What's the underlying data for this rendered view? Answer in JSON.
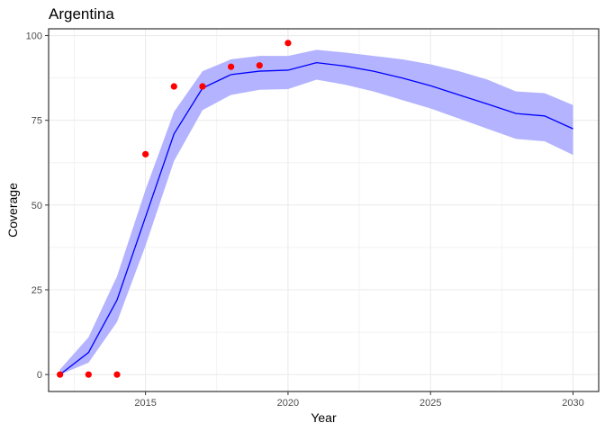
{
  "chart_data": {
    "type": "line",
    "title": "Argentina",
    "xlabel": "Year",
    "ylabel": "Coverage",
    "xlim": [
      2011.6,
      2030.9
    ],
    "ylim": [
      -5,
      102
    ],
    "x_ticks": [
      2015,
      2020,
      2025,
      2030
    ],
    "y_ticks": [
      0,
      25,
      50,
      75,
      100
    ],
    "grid": true,
    "colors": {
      "line": "#0000ff",
      "band": "#b3b3ff",
      "points": "#ff0000",
      "grid": "#ebebeb",
      "panel_border": "#333333"
    },
    "series": [
      {
        "type": "line",
        "x": [
          2012,
          2013,
          2014,
          2015,
          2016,
          2017,
          2018,
          2019,
          2020,
          2021,
          2022,
          2023,
          2024,
          2025,
          2026,
          2027,
          2028,
          2029,
          2030
        ],
        "values": [
          0,
          6.5,
          22,
          46.5,
          71,
          84.5,
          88.5,
          89.5,
          89.8,
          92,
          91,
          89.5,
          87.5,
          85.2,
          82.5,
          79.8,
          77,
          76.3,
          72.5
        ]
      },
      {
        "type": "band",
        "x": [
          2012,
          2013,
          2014,
          2015,
          2016,
          2017,
          2018,
          2019,
          2020,
          2021,
          2022,
          2023,
          2024,
          2025,
          2026,
          2027,
          2028,
          2029,
          2030
        ],
        "lower": [
          0,
          3.5,
          15.5,
          38,
          63,
          78,
          82.5,
          84,
          84.2,
          87,
          85.5,
          83.5,
          81,
          78.5,
          75.5,
          72.5,
          69.5,
          68.8,
          64.8
        ],
        "upper": [
          1.5,
          11,
          29,
          54.5,
          77.5,
          89.5,
          93,
          94,
          94,
          95.8,
          95,
          94,
          93,
          91.5,
          89.5,
          87,
          83.5,
          83,
          79.5
        ]
      },
      {
        "type": "scatter",
        "x": [
          2012,
          2013,
          2014,
          2015,
          2016,
          2017,
          2018,
          2019,
          2020
        ],
        "values": [
          0,
          0,
          0,
          65,
          85,
          85,
          90.8,
          91.2,
          97.8
        ]
      }
    ]
  }
}
